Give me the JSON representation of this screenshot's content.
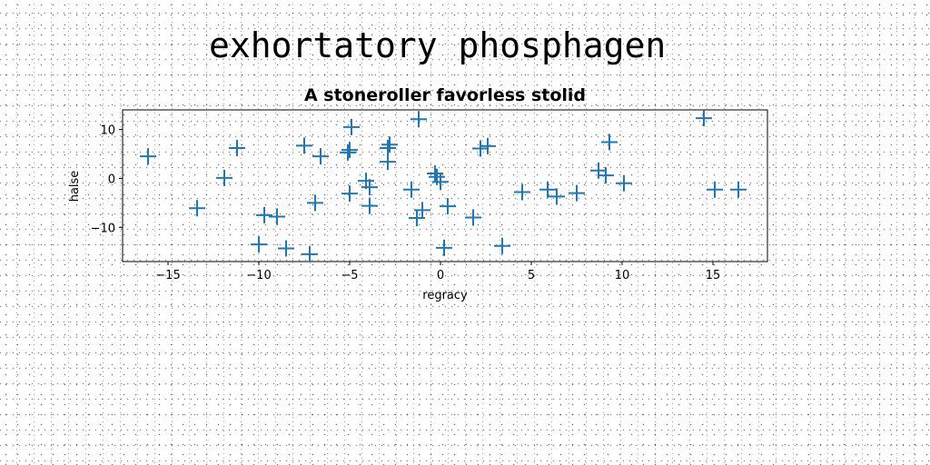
{
  "page_title": "exhortatory phosphagen",
  "chart_data": {
    "type": "scatter",
    "title": "A stoneroller favorless stolid",
    "xlabel": "regracy",
    "ylabel": "halse",
    "xlim": [
      -17.5,
      18
    ],
    "ylim": [
      -17,
      14
    ],
    "xticks": [
      -15,
      -10,
      -5,
      0,
      5,
      10,
      15
    ],
    "yticks": [
      -10,
      0,
      10
    ],
    "marker": "plus",
    "color": "#1f77b4",
    "points": [
      {
        "x": -16.1,
        "y": 4.5
      },
      {
        "x": -13.4,
        "y": -6.1
      },
      {
        "x": -11.9,
        "y": 0.1
      },
      {
        "x": -11.2,
        "y": 6.2
      },
      {
        "x": -10.0,
        "y": -13.5
      },
      {
        "x": -9.7,
        "y": -7.5
      },
      {
        "x": -9.0,
        "y": -7.8
      },
      {
        "x": -8.5,
        "y": -14.3
      },
      {
        "x": -7.5,
        "y": 6.7
      },
      {
        "x": -7.2,
        "y": -15.5
      },
      {
        "x": -6.9,
        "y": -5.0
      },
      {
        "x": -6.6,
        "y": 4.5
      },
      {
        "x": -5.1,
        "y": 5.3
      },
      {
        "x": -5.0,
        "y": 5.8
      },
      {
        "x": -4.9,
        "y": 10.5
      },
      {
        "x": -5.0,
        "y": -3.1
      },
      {
        "x": -4.1,
        "y": -0.5
      },
      {
        "x": -3.9,
        "y": -1.8
      },
      {
        "x": -3.9,
        "y": -5.6
      },
      {
        "x": -2.9,
        "y": 6.2
      },
      {
        "x": -2.8,
        "y": 6.9
      },
      {
        "x": -2.9,
        "y": 3.4
      },
      {
        "x": -1.6,
        "y": -2.3
      },
      {
        "x": -1.3,
        "y": -8.1
      },
      {
        "x": -1.0,
        "y": -6.5
      },
      {
        "x": -1.2,
        "y": 12.1
      },
      {
        "x": -0.3,
        "y": 1.0
      },
      {
        "x": -0.2,
        "y": 0.3
      },
      {
        "x": 0.0,
        "y": -0.7
      },
      {
        "x": 0.2,
        "y": -14.2
      },
      {
        "x": 0.4,
        "y": -5.7
      },
      {
        "x": 1.8,
        "y": -8.0
      },
      {
        "x": 2.2,
        "y": 6.1
      },
      {
        "x": 2.6,
        "y": 6.6
      },
      {
        "x": 3.4,
        "y": -13.8
      },
      {
        "x": 4.5,
        "y": -2.8
      },
      {
        "x": 5.9,
        "y": -2.3
      },
      {
        "x": 6.4,
        "y": -3.7
      },
      {
        "x": 7.5,
        "y": -3.0
      },
      {
        "x": 8.7,
        "y": 1.6
      },
      {
        "x": 9.1,
        "y": 0.6
      },
      {
        "x": 9.3,
        "y": 7.4
      },
      {
        "x": 10.1,
        "y": -1.0
      },
      {
        "x": 14.5,
        "y": 12.3
      },
      {
        "x": 15.1,
        "y": -2.3
      },
      {
        "x": 16.4,
        "y": -2.3
      }
    ]
  }
}
